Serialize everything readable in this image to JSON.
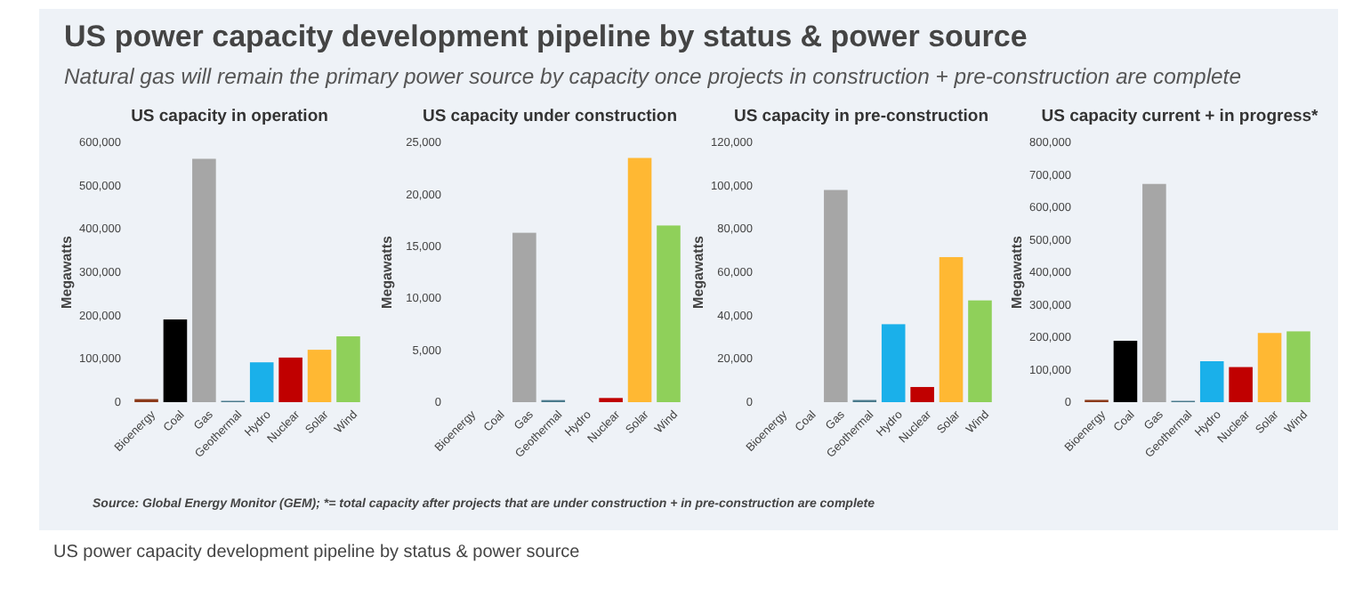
{
  "chart_data": [
    {
      "type": "other",
      "title": "US power capacity development pipeline by status & power source",
      "subtitle": "Natural gas will remain the primary power source by capacity once projects in construction + pre-construction are complete",
      "annotations": [
        "Source: Global Energy Monitor (GEM); *= total capacity after projects that are under construction + in pre-construction are complete",
        "US power capacity development pipeline by status & power source"
      ]
    },
    {
      "type": "bar",
      "title": "US capacity in operation",
      "ylabel": "Megawatts",
      "categories": [
        "Bioenergy",
        "Coal",
        "Gas",
        "Geothermal",
        "Hydro",
        "Nuclear",
        "Solar",
        "Wind"
      ],
      "values": [
        7000,
        191000,
        562000,
        3000,
        92000,
        103000,
        121000,
        152000
      ],
      "colors": [
        "#8b3a1a",
        "#000000",
        "#a6a6a6",
        "#4a7a8c",
        "#1ab0ea",
        "#c00000",
        "#ffb833",
        "#8fd05a"
      ],
      "ylim": [
        0,
        600000
      ],
      "yticks": [
        {
          "value": 0,
          "label": "0"
        },
        {
          "value": 100000,
          "label": "100,000"
        },
        {
          "value": 200000,
          "label": "200,000"
        },
        {
          "value": 300000,
          "label": "300,000"
        },
        {
          "value": 400000,
          "label": "400,000"
        },
        {
          "value": 500000,
          "label": "500,000"
        },
        {
          "value": 600000,
          "label": "600,000"
        }
      ],
      "grid": false
    },
    {
      "type": "bar",
      "title": "US capacity under construction",
      "ylabel": "Megawatts",
      "categories": [
        "Bioenergy",
        "Coal",
        "Gas",
        "Geothermal",
        "Hydro",
        "Nuclear",
        "Solar",
        "Wind"
      ],
      "values": [
        0,
        0,
        16300,
        200,
        0,
        400,
        23500,
        17000
      ],
      "colors": [
        "#8b3a1a",
        "#000000",
        "#a6a6a6",
        "#4a7a8c",
        "#1ab0ea",
        "#c00000",
        "#ffb833",
        "#8fd05a"
      ],
      "ylim": [
        0,
        25000
      ],
      "yticks": [
        {
          "value": 0,
          "label": "0"
        },
        {
          "value": 5000,
          "label": "5,000"
        },
        {
          "value": 10000,
          "label": "10,000"
        },
        {
          "value": 15000,
          "label": "15,000"
        },
        {
          "value": 20000,
          "label": "20,000"
        },
        {
          "value": 25000,
          "label": "25,000"
        }
      ],
      "grid": false
    },
    {
      "type": "bar",
      "title": "US capacity in pre-construction",
      "ylabel": "Megawatts",
      "categories": [
        "Bioenergy",
        "Coal",
        "Gas",
        "Geothermal",
        "Hydro",
        "Nuclear",
        "Solar",
        "Wind"
      ],
      "values": [
        0,
        0,
        98000,
        1000,
        36000,
        7000,
        67000,
        47000
      ],
      "colors": [
        "#8b3a1a",
        "#000000",
        "#a6a6a6",
        "#4a7a8c",
        "#1ab0ea",
        "#c00000",
        "#ffb833",
        "#8fd05a"
      ],
      "ylim": [
        0,
        120000
      ],
      "yticks": [
        {
          "value": 0,
          "label": "0"
        },
        {
          "value": 20000,
          "label": "20,000"
        },
        {
          "value": 40000,
          "label": "40,000"
        },
        {
          "value": 60000,
          "label": "60,000"
        },
        {
          "value": 80000,
          "label": "80,000"
        },
        {
          "value": 100000,
          "label": "100,000"
        },
        {
          "value": 120000,
          "label": "120,000"
        }
      ],
      "grid": false
    },
    {
      "type": "bar",
      "title": "US capacity current + in progress*",
      "ylabel": "Megawatts",
      "categories": [
        "Bioenergy",
        "Coal",
        "Gas",
        "Geothermal",
        "Hydro",
        "Nuclear",
        "Solar",
        "Wind"
      ],
      "values": [
        7000,
        189000,
        672000,
        4000,
        126000,
        108000,
        213000,
        218000
      ],
      "colors": [
        "#8b3a1a",
        "#000000",
        "#a6a6a6",
        "#4a7a8c",
        "#1ab0ea",
        "#c00000",
        "#ffb833",
        "#8fd05a"
      ],
      "ylim": [
        0,
        800000
      ],
      "yticks": [
        {
          "value": 0,
          "label": "0"
        },
        {
          "value": 100000,
          "label": "100,000"
        },
        {
          "value": 200000,
          "label": "200,000"
        },
        {
          "value": 300000,
          "label": "300,000"
        },
        {
          "value": 400000,
          "label": "400,000"
        },
        {
          "value": 500000,
          "label": "500,000"
        },
        {
          "value": 600000,
          "label": "600,000"
        },
        {
          "value": 700000,
          "label": "700,000"
        },
        {
          "value": 800000,
          "label": "800,000"
        }
      ],
      "grid": false
    }
  ]
}
